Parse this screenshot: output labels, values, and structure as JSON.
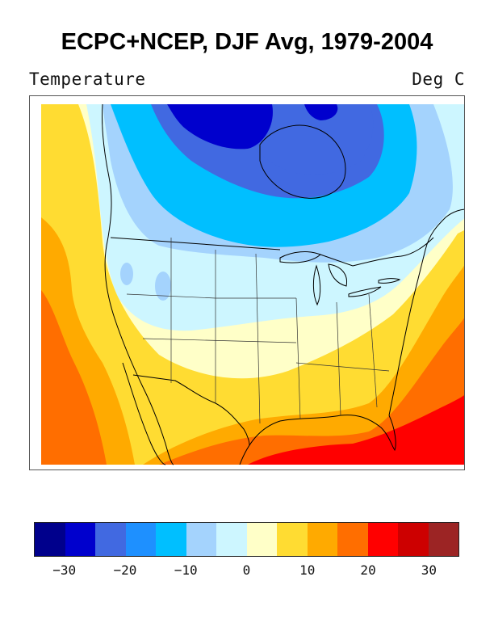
{
  "title": "ECPC+NCEP, DJF Avg, 1979-2004",
  "field": {
    "name": "Temperature",
    "units": "Deg C"
  },
  "map": {
    "region": "North America (contiguous US, southern Canada, northern Mexico)",
    "variable": "Temperature",
    "colors": {
      "c_m30": "#00008c",
      "c_m25": "#0000cd",
      "c_m20": "#4169e1",
      "c_m15": "#1e90ff",
      "c_m10": "#00bfff",
      "c_m5": "#a4d3fd",
      "c_0": "#cdf6ff",
      "c_5": "#ffffc8",
      "c_10": "#ffdc32",
      "c_15": "#ffaa00",
      "c_20": "#ff6e00",
      "c_25": "#ff0000",
      "c_30": "#cd0000",
      "c_35": "#9c2424"
    }
  },
  "colorbar": {
    "colors": [
      "#00008c",
      "#0000cd",
      "#4169e1",
      "#1e90ff",
      "#00bfff",
      "#a4d3fd",
      "#cdf6ff",
      "#ffffc8",
      "#ffdc32",
      "#ffaa00",
      "#ff6e00",
      "#ff0000",
      "#cd0000",
      "#9c2424"
    ],
    "tick_labels": [
      "−30",
      "−20",
      "−10",
      "0",
      "10",
      "20",
      "30"
    ],
    "tick_values": [
      -30,
      -20,
      -10,
      0,
      10,
      20,
      30
    ],
    "range": [
      -35,
      35
    ]
  }
}
